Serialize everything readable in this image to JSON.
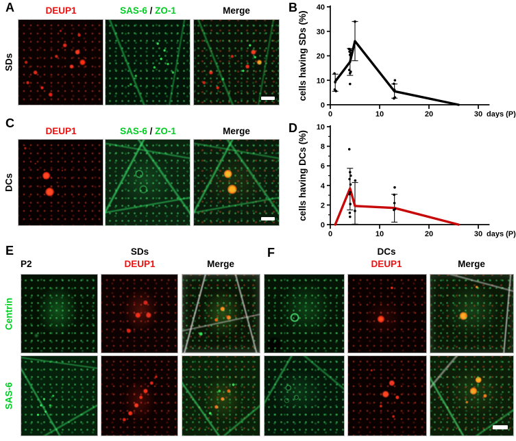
{
  "figure": {
    "panel_a": {
      "letter": "A",
      "row_label": "SDs",
      "col1": "DEUP1",
      "col2_a": "SAS-6",
      "col2_sep": "/",
      "col2_b": "ZO-1",
      "col3": "Merge"
    },
    "panel_b": {
      "letter": "B"
    },
    "panel_c": {
      "letter": "C",
      "row_label": "DCs",
      "col1": "DEUP1",
      "col2_a": "SAS-6",
      "col2_sep": "/",
      "col2_b": "ZO-1",
      "col3": "Merge"
    },
    "panel_d": {
      "letter": "D"
    },
    "panel_e": {
      "letter": "E",
      "corner_label": "P2",
      "group_label": "SDs",
      "col2": "DEUP1",
      "col3": "Merge",
      "row1_label": "Centrin",
      "row2_label": "SAS-6"
    },
    "panel_f": {
      "letter": "F",
      "group_label": "DCs",
      "col2": "DEUP1",
      "col3": "Merge"
    }
  },
  "colors": {
    "deup1_red": "#ee1111",
    "marker_green": "#00cc22",
    "line_b": "#000000",
    "line_d": "#c70808"
  },
  "chart_data": [
    {
      "id": "B",
      "type": "line",
      "title": "",
      "ylabel": "cells having SDs (%)",
      "xlabel": "days (P)",
      "xlim": [
        0,
        32
      ],
      "ylim": [
        0,
        40
      ],
      "xticks": [
        0,
        10,
        20,
        30
      ],
      "yticks": [
        0,
        10,
        20,
        30,
        40
      ],
      "minor_yticks": [],
      "grid": false,
      "legend": "none",
      "line_color": "#000000",
      "x": [
        1,
        4,
        5,
        13,
        26
      ],
      "y": [
        9.5,
        17.5,
        26,
        5.5,
        0
      ],
      "error_low": [
        5.5,
        12,
        18,
        2.7,
        null
      ],
      "error_high": [
        12.5,
        23,
        34,
        8.5,
        null
      ],
      "scatter": [
        [
          0.85,
          12.8
        ],
        [
          1.2,
          10.3
        ],
        [
          1.0,
          9.2
        ],
        [
          0.9,
          6.2
        ],
        [
          1.15,
          5.6
        ],
        [
          3.8,
          22.8
        ],
        [
          4.1,
          22.3
        ],
        [
          3.9,
          21.7
        ],
        [
          4.2,
          21.1
        ],
        [
          4.0,
          20.4
        ],
        [
          3.85,
          14.2
        ],
        [
          4.15,
          13.5
        ],
        [
          4.0,
          12.9
        ],
        [
          4.0,
          8.5
        ],
        [
          5.0,
          34.0
        ],
        [
          13.1,
          10.0
        ],
        [
          12.9,
          8.6
        ],
        [
          13.0,
          6.1
        ],
        [
          13.1,
          3.0
        ],
        [
          12.9,
          2.6
        ]
      ]
    },
    {
      "id": "D",
      "type": "line",
      "title": "",
      "ylabel": "cells having DCs (%)",
      "xlabel": "days (P)",
      "xlim": [
        0,
        32
      ],
      "ylim": [
        0,
        10
      ],
      "xticks": [
        0,
        10,
        20,
        30
      ],
      "yticks": [
        0,
        2,
        4,
        6,
        8,
        10
      ],
      "minor_yticks": [
        1,
        3,
        5,
        7,
        9
      ],
      "grid": false,
      "legend": "none",
      "line_color": "#c70808",
      "x": [
        1,
        4,
        5,
        13,
        26
      ],
      "y": [
        0,
        3.7,
        1.9,
        1.7,
        0
      ],
      "error_low": [
        null,
        1.5,
        0.05,
        0.25,
        null
      ],
      "error_high": [
        null,
        5.75,
        4.3,
        3.1,
        null
      ],
      "scatter": [
        [
          3.85,
          7.7
        ],
        [
          4.0,
          5.35
        ],
        [
          4.15,
          5.0
        ],
        [
          3.9,
          4.65
        ],
        [
          4.1,
          4.1
        ],
        [
          4.0,
          3.3
        ],
        [
          3.9,
          3.1
        ],
        [
          4.05,
          2.1
        ],
        [
          3.95,
          1.2
        ],
        [
          4.0,
          0.8
        ],
        [
          5.05,
          4.5
        ],
        [
          5.0,
          1.4
        ],
        [
          13.05,
          3.8
        ],
        [
          12.95,
          3.05
        ],
        [
          13.0,
          2.2
        ],
        [
          13.1,
          1.6
        ],
        [
          12.9,
          1.5
        ]
      ]
    }
  ]
}
